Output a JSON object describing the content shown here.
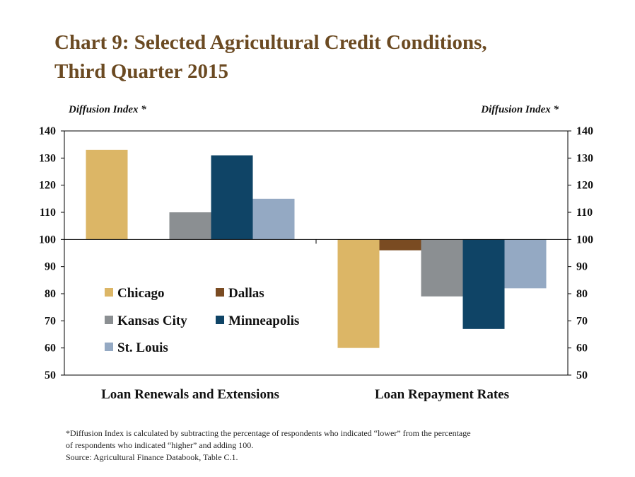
{
  "title_line1": "Chart 9: Selected Agricultural Credit Conditions,",
  "title_line2": "Third Quarter 2015",
  "footnote_line1": "*Diffusion Index is calculated by subtracting the percentage of respondents who indicated “lower” from the percentage",
  "footnote_line2": "of respondents who indicated “higher” and adding 100.",
  "source": "Source: Agricultural Finance Databook, Table C.1.",
  "chart_data": {
    "type": "bar",
    "ylabel_left": "Diffusion Index *",
    "ylabel_right": "Diffusion Index *",
    "ylim": [
      50,
      140
    ],
    "yticks": [
      50,
      60,
      70,
      80,
      90,
      100,
      110,
      120,
      130,
      140
    ],
    "baseline": 100,
    "categories": [
      "Loan Renewals and Extensions",
      "Loan Repayment Rates"
    ],
    "series": [
      {
        "name": "Chicago",
        "color": "#dcb666",
        "values": [
          133,
          60
        ]
      },
      {
        "name": "Dallas",
        "color": "#7a4b22",
        "values": [
          100,
          96
        ]
      },
      {
        "name": "Kansas City",
        "color": "#8b8f92",
        "values": [
          110,
          79
        ]
      },
      {
        "name": "Minneapolis",
        "color": "#0f4466",
        "values": [
          131,
          67
        ]
      },
      {
        "name": "St. Louis",
        "color": "#94a9c3",
        "values": [
          115,
          82
        ]
      }
    ],
    "legend_position": "inside-lower-left",
    "grid": false
  }
}
